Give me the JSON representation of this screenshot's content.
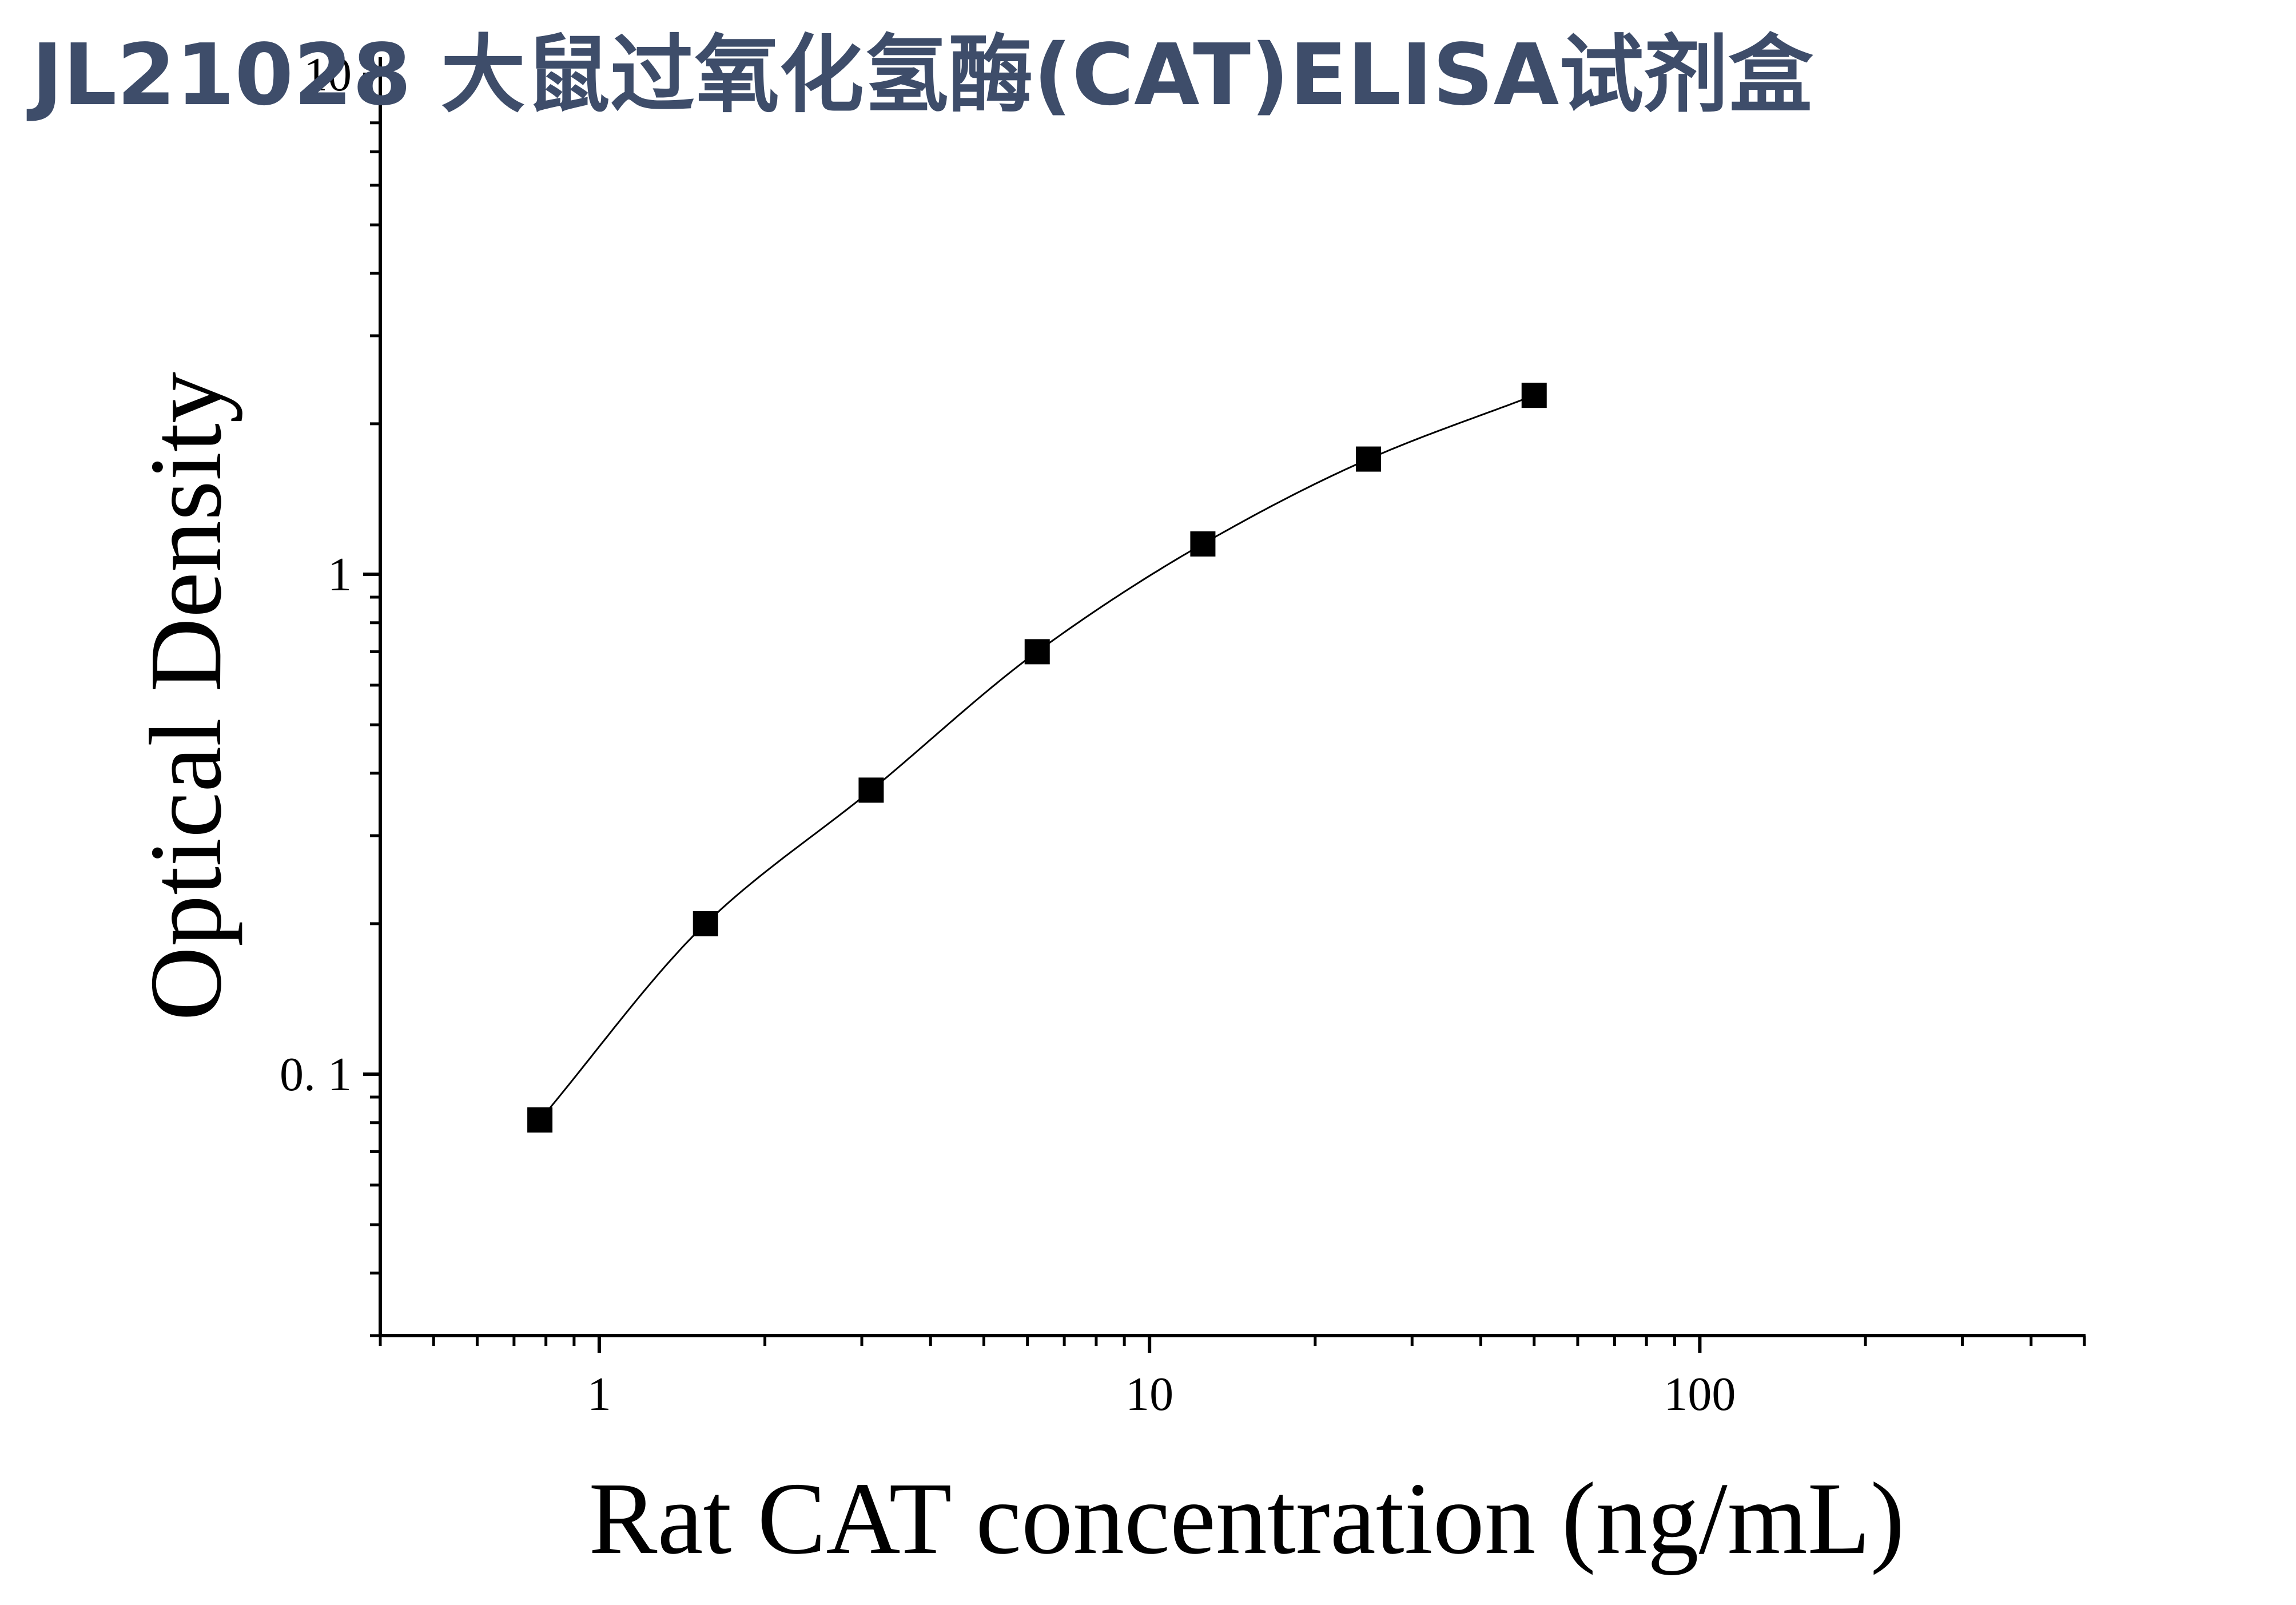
{
  "page_title": "JL21028 大鼠过氧化氢酶(CAT)ELISA试剂盒",
  "colors": {
    "title": "#3e4d6a",
    "axis": "#000000",
    "marker": "#000000",
    "curve": "#000000",
    "background": "#ffffff"
  },
  "chart_data": {
    "type": "scatter",
    "title": "",
    "xlabel": "Rat CAT concentration (ng/mL)",
    "ylabel": "Optical Density",
    "x_scale": "log",
    "y_scale": "log",
    "xlim": [
      0.4,
      500
    ],
    "ylim": [
      0.03,
      10
    ],
    "x_ticks": [
      {
        "value": 1,
        "label": "1"
      },
      {
        "value": 10,
        "label": "10"
      },
      {
        "value": 100,
        "label": "100"
      }
    ],
    "y_ticks": [
      {
        "value": 0.1,
        "label": "0. 1"
      },
      {
        "value": 1,
        "label": "1"
      },
      {
        "value": 10,
        "label": "10"
      }
    ],
    "grid": false,
    "legend": "none",
    "series": [
      {
        "marker": "square",
        "fit_curve": true,
        "x": [
          0.78,
          1.56,
          3.12,
          6.25,
          12.5,
          25,
          50
        ],
        "y": [
          0.081,
          0.2,
          0.37,
          0.7,
          1.15,
          1.7,
          2.28
        ]
      }
    ]
  }
}
